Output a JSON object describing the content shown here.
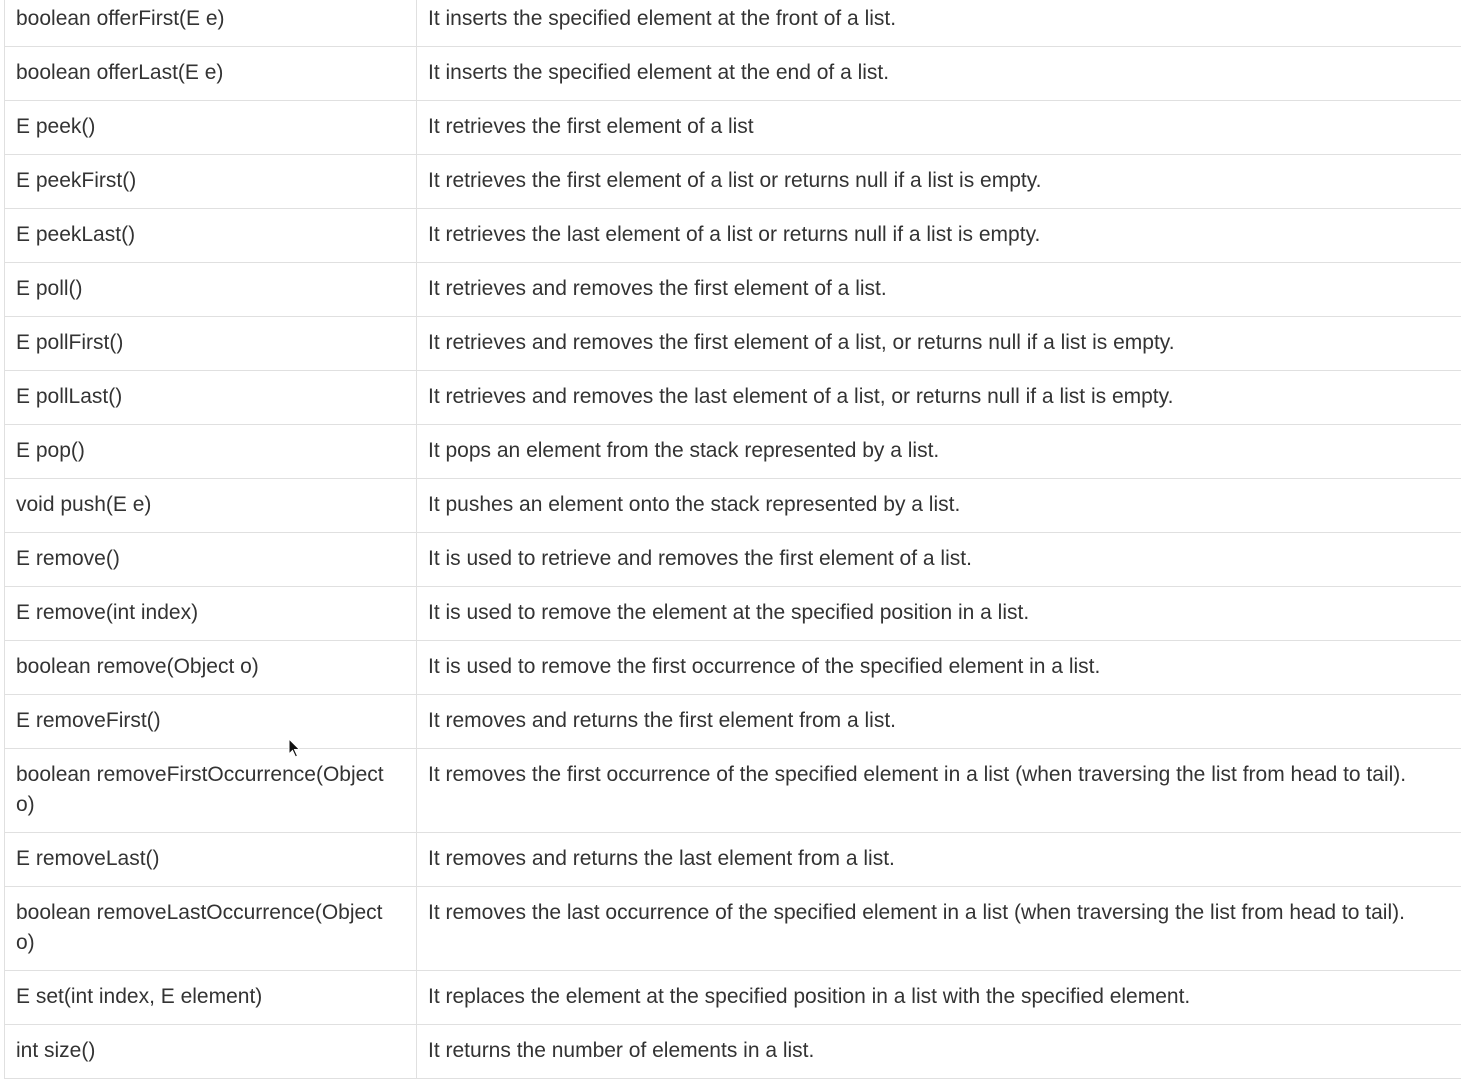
{
  "rows": [
    {
      "method": "boolean offerFirst(E e)",
      "description": "It inserts the specified element at the front of a list."
    },
    {
      "method": "boolean offerLast(E e)",
      "description": "It inserts the specified element at the end of a list."
    },
    {
      "method": "E peek()",
      "description": "It retrieves the first element of a list"
    },
    {
      "method": "E peekFirst()",
      "description": "It retrieves the first element of a list or returns null if a list is empty."
    },
    {
      "method": "E peekLast()",
      "description": "It retrieves the last element of a list or returns null if a list is empty."
    },
    {
      "method": "E poll()",
      "description": "It retrieves and removes the first element of a list."
    },
    {
      "method": "E pollFirst()",
      "description": "It retrieves and removes the first element of a list, or returns null if a list is empty."
    },
    {
      "method": "E pollLast()",
      "description": "It retrieves and removes the last element of a list, or returns null if a list is empty."
    },
    {
      "method": "E pop()",
      "description": "It pops an element from the stack represented by a list."
    },
    {
      "method": "void push(E e)",
      "description": "It pushes an element onto the stack represented by a list."
    },
    {
      "method": "E remove()",
      "description": "It is used to retrieve and removes the first element of a list."
    },
    {
      "method": "E remove(int index)",
      "description": "It is used to remove the element at the specified position in a list."
    },
    {
      "method": "boolean remove(Object o)",
      "description": "It is used to remove the first occurrence of the specified element in a list."
    },
    {
      "method": "E removeFirst()",
      "description": "It removes and returns the first element from a list."
    },
    {
      "method": "boolean removeFirstOccurrence(Object o)",
      "description": "It removes the first occurrence of the specified element in a list (when traversing the list from head to tail)."
    },
    {
      "method": "E removeLast()",
      "description": "It removes and returns the last element from a list."
    },
    {
      "method": "boolean removeLastOccurrence(Object o)",
      "description": "It removes the last occurrence of the specified element in a list (when traversing the list from head to tail)."
    },
    {
      "method": "E set(int index, E element)",
      "description": "It replaces the element at the specified position in a list with the specified element."
    },
    {
      "method": "int size()",
      "description": "It returns the number of elements in a list."
    }
  ],
  "cursor_icon": "mouse-pointer-icon"
}
